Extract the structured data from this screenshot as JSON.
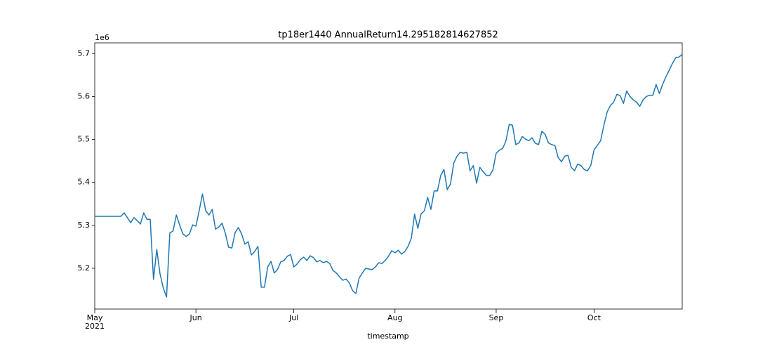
{
  "chart_data": {
    "type": "line",
    "title": "tp18er1440 AnnualReturn14.295182814627852",
    "x_label": "timestamp",
    "y_offset_label": "1e6",
    "xtick_sublabel": "2021",
    "xlim": [
      0,
      180
    ],
    "xticks": [
      {
        "value": 0,
        "label": "May"
      },
      {
        "value": 31,
        "label": "Jun"
      },
      {
        "value": 61,
        "label": "Jul"
      },
      {
        "value": 92,
        "label": "Aug"
      },
      {
        "value": 123,
        "label": "Sep"
      },
      {
        "value": 153,
        "label": "Oct"
      }
    ],
    "ylim": [
      5.105,
      5.725
    ],
    "yticks": [
      5.2,
      5.3,
      5.4,
      5.5,
      5.6,
      5.7
    ],
    "grid": false,
    "series": [
      {
        "color": "#1f77b4",
        "values": [
          5.321,
          5.321,
          5.321,
          5.321,
          5.321,
          5.321,
          5.321,
          5.321,
          5.321,
          5.329,
          5.318,
          5.306,
          5.318,
          5.311,
          5.303,
          5.329,
          5.314,
          5.314,
          5.174,
          5.244,
          5.187,
          5.154,
          5.133,
          5.282,
          5.287,
          5.324,
          5.301,
          5.28,
          5.274,
          5.28,
          5.301,
          5.298,
          5.334,
          5.373,
          5.334,
          5.324,
          5.337,
          5.291,
          5.296,
          5.305,
          5.282,
          5.249,
          5.247,
          5.283,
          5.295,
          5.28,
          5.256,
          5.262,
          5.231,
          5.239,
          5.251,
          5.156,
          5.156,
          5.203,
          5.216,
          5.189,
          5.197,
          5.215,
          5.218,
          5.228,
          5.232,
          5.203,
          5.21,
          5.22,
          5.226,
          5.218,
          5.229,
          5.225,
          5.215,
          5.218,
          5.213,
          5.216,
          5.211,
          5.195,
          5.189,
          5.18,
          5.172,
          5.175,
          5.166,
          5.148,
          5.141,
          5.177,
          5.189,
          5.2,
          5.198,
          5.197,
          5.203,
          5.213,
          5.211,
          5.218,
          5.228,
          5.241,
          5.236,
          5.242,
          5.233,
          5.239,
          5.251,
          5.27,
          5.326,
          5.293,
          5.327,
          5.334,
          5.365,
          5.337,
          5.38,
          5.38,
          5.416,
          5.43,
          5.383,
          5.396,
          5.445,
          5.461,
          5.47,
          5.468,
          5.47,
          5.427,
          5.439,
          5.398,
          5.435,
          5.425,
          5.416,
          5.416,
          5.429,
          5.468,
          5.475,
          5.479,
          5.497,
          5.535,
          5.533,
          5.488,
          5.492,
          5.507,
          5.501,
          5.497,
          5.504,
          5.491,
          5.488,
          5.519,
          5.512,
          5.492,
          5.488,
          5.486,
          5.458,
          5.448,
          5.461,
          5.463,
          5.435,
          5.427,
          5.443,
          5.439,
          5.43,
          5.427,
          5.44,
          5.476,
          5.486,
          5.497,
          5.533,
          5.564,
          5.579,
          5.587,
          5.605,
          5.602,
          5.584,
          5.613,
          5.6,
          5.592,
          5.587,
          5.577,
          5.592,
          5.6,
          5.603,
          5.603,
          5.628,
          5.607,
          5.628,
          5.646,
          5.661,
          5.677,
          5.69,
          5.692,
          5.698
        ]
      }
    ]
  }
}
